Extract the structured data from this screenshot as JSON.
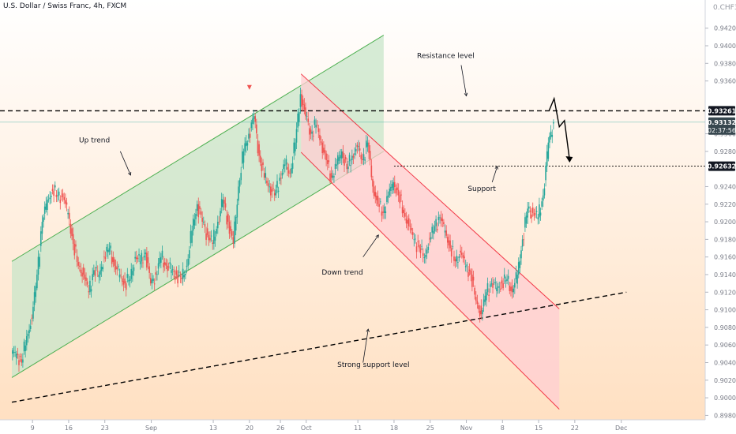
{
  "chart_data": {
    "type": "candlestick",
    "title": "U.S. Dollar / Swiss Franc, 4h, FXCM",
    "currency": "CHF",
    "price_scale_header": "0.CHF3",
    "ylim": [
      0.8975,
      0.9452
    ],
    "yticks": [
      "0.89800",
      "0.90000",
      "0.90200",
      "0.90400",
      "0.90600",
      "0.90800",
      "0.91000",
      "0.91200",
      "0.91400",
      "0.91600",
      "0.91800",
      "0.92000",
      "0.92200",
      "0.92400",
      "0.92800",
      "0.93000",
      "0.93600",
      "0.93800",
      "0.94000",
      "0.94200"
    ],
    "xticks": [
      {
        "label": "9",
        "date": "2021-08-09"
      },
      {
        "label": "16",
        "date": "2021-08-16"
      },
      {
        "label": "23",
        "date": "2021-08-23"
      },
      {
        "label": "Sep",
        "date": "2021-09-01"
      },
      {
        "label": "13",
        "date": "2021-09-13"
      },
      {
        "label": "20",
        "date": "2021-09-20"
      },
      {
        "label": "26",
        "date": "2021-09-26"
      },
      {
        "label": "Oct",
        "date": "2021-10-01"
      },
      {
        "label": "11",
        "date": "2021-10-11"
      },
      {
        "label": "18",
        "date": "2021-10-18"
      },
      {
        "label": "25",
        "date": "2021-10-25"
      },
      {
        "label": "Nov",
        "date": "2021-11-01"
      },
      {
        "label": "8",
        "date": "2021-11-08"
      },
      {
        "label": "15",
        "date": "2021-11-15"
      },
      {
        "label": "22",
        "date": "2021-11-22"
      },
      {
        "label": "Dec",
        "date": "2021-12-01"
      }
    ],
    "current_price": {
      "value": 0.93132,
      "label": "0.93132",
      "countdown": "02:37:56"
    },
    "levels": [
      {
        "name": "Resistance level",
        "value": 0.93261,
        "label": "0.93261"
      },
      {
        "name": "Support",
        "value": 0.92632,
        "label": "0.92632"
      }
    ],
    "annotations": [
      "Up trend",
      "Down trend",
      "Resistance level",
      "Support",
      "Strong support level"
    ],
    "trendline": {
      "name": "Strong support level",
      "points": [
        {
          "date": "2021-08-05",
          "price": 0.8995
        },
        {
          "date": "2021-12-02",
          "price": 0.912
        }
      ]
    },
    "channels": [
      {
        "name": "Up trend",
        "color": "#4caf50",
        "lower": [
          {
            "date": "2021-08-05",
            "price": 0.9023
          },
          {
            "date": "2021-10-16",
            "price": 0.928
          }
        ],
        "upper": [
          {
            "date": "2021-08-05",
            "price": 0.9155
          },
          {
            "date": "2021-10-16",
            "price": 0.9412
          }
        ]
      },
      {
        "name": "Down trend",
        "color": "#f23645",
        "upper": [
          {
            "date": "2021-09-30",
            "price": 0.9368
          },
          {
            "date": "2021-11-19",
            "price": 0.9101
          }
        ],
        "lower": [
          {
            "date": "2021-09-30",
            "price": 0.9279
          },
          {
            "date": "2021-11-19",
            "price": 0.8987
          }
        ]
      }
    ],
    "projection": [
      {
        "date": "2021-11-17",
        "price": 0.9326
      },
      {
        "date": "2021-11-18",
        "price": 0.934
      },
      {
        "date": "2021-11-19",
        "price": 0.9308
      },
      {
        "date": "2021-11-20",
        "price": 0.9315
      },
      {
        "date": "2021-11-21",
        "price": 0.927
      }
    ],
    "colors": {
      "up": "#26a69a",
      "down": "#ef5350",
      "up_channel_fill": "#c8e6c9",
      "down_channel_fill": "#ffcdd2",
      "background_top": "#ffffff",
      "background_bottom": "#ffe0c2",
      "label_dark": "#131722",
      "current_price_bg": "#37474f"
    },
    "series": [
      {
        "date": "2021-08-05",
        "close": 0.905
      },
      {
        "date": "2021-08-06",
        "close": 0.904
      },
      {
        "date": "2021-08-07",
        "close": 0.907
      },
      {
        "date": "2021-08-08",
        "close": 0.909
      },
      {
        "date": "2021-08-09",
        "close": 0.914
      },
      {
        "date": "2021-08-10",
        "close": 0.92
      },
      {
        "date": "2021-08-11",
        "close": 0.9225
      },
      {
        "date": "2021-08-12",
        "close": 0.9235
      },
      {
        "date": "2021-08-13",
        "close": 0.923
      },
      {
        "date": "2021-08-14",
        "close": 0.9228
      },
      {
        "date": "2021-08-15",
        "close": 0.921
      },
      {
        "date": "2021-08-16",
        "close": 0.9175
      },
      {
        "date": "2021-08-17",
        "close": 0.915
      },
      {
        "date": "2021-08-18",
        "close": 0.914
      },
      {
        "date": "2021-08-19",
        "close": 0.912
      },
      {
        "date": "2021-08-20",
        "close": 0.9145
      },
      {
        "date": "2021-08-21",
        "close": 0.914
      },
      {
        "date": "2021-08-22",
        "close": 0.916
      },
      {
        "date": "2021-08-23",
        "close": 0.917
      },
      {
        "date": "2021-08-24",
        "close": 0.915
      },
      {
        "date": "2021-08-25",
        "close": 0.914
      },
      {
        "date": "2021-08-26",
        "close": 0.913
      },
      {
        "date": "2021-08-27",
        "close": 0.9135
      },
      {
        "date": "2021-08-28",
        "close": 0.916
      },
      {
        "date": "2021-08-29",
        "close": 0.9155
      },
      {
        "date": "2021-08-30",
        "close": 0.9165
      },
      {
        "date": "2021-08-31",
        "close": 0.913
      },
      {
        "date": "2021-09-01",
        "close": 0.914
      },
      {
        "date": "2021-09-02",
        "close": 0.916
      },
      {
        "date": "2021-09-03",
        "close": 0.915
      },
      {
        "date": "2021-09-04",
        "close": 0.9145
      },
      {
        "date": "2021-09-05",
        "close": 0.914
      },
      {
        "date": "2021-09-06",
        "close": 0.9135
      },
      {
        "date": "2021-09-07",
        "close": 0.915
      },
      {
        "date": "2021-09-08",
        "close": 0.919
      },
      {
        "date": "2021-09-09",
        "close": 0.922
      },
      {
        "date": "2021-09-10",
        "close": 0.92
      },
      {
        "date": "2021-09-11",
        "close": 0.9185
      },
      {
        "date": "2021-09-12",
        "close": 0.9175
      },
      {
        "date": "2021-09-13",
        "close": 0.92
      },
      {
        "date": "2021-09-14",
        "close": 0.9225
      },
      {
        "date": "2021-09-15",
        "close": 0.92
      },
      {
        "date": "2021-09-16",
        "close": 0.9175
      },
      {
        "date": "2021-09-17",
        "close": 0.924
      },
      {
        "date": "2021-09-18",
        "close": 0.928
      },
      {
        "date": "2021-09-19",
        "close": 0.93
      },
      {
        "date": "2021-09-20",
        "close": 0.932
      },
      {
        "date": "2021-09-21",
        "close": 0.9275
      },
      {
        "date": "2021-09-22",
        "close": 0.925
      },
      {
        "date": "2021-09-23",
        "close": 0.924
      },
      {
        "date": "2021-09-24",
        "close": 0.923
      },
      {
        "date": "2021-09-25",
        "close": 0.925
      },
      {
        "date": "2021-09-26",
        "close": 0.9265
      },
      {
        "date": "2021-09-27",
        "close": 0.9255
      },
      {
        "date": "2021-09-28",
        "close": 0.929
      },
      {
        "date": "2021-09-29",
        "close": 0.9345
      },
      {
        "date": "2021-09-30",
        "close": 0.932
      },
      {
        "date": "2021-10-01",
        "close": 0.93
      },
      {
        "date": "2021-10-02",
        "close": 0.931
      },
      {
        "date": "2021-10-03",
        "close": 0.929
      },
      {
        "date": "2021-10-04",
        "close": 0.927
      },
      {
        "date": "2021-10-05",
        "close": 0.925
      },
      {
        "date": "2021-10-06",
        "close": 0.9265
      },
      {
        "date": "2021-10-07",
        "close": 0.928
      },
      {
        "date": "2021-10-08",
        "close": 0.926
      },
      {
        "date": "2021-10-09",
        "close": 0.9275
      },
      {
        "date": "2021-10-10",
        "close": 0.9285
      },
      {
        "date": "2021-10-11",
        "close": 0.927
      },
      {
        "date": "2021-10-12",
        "close": 0.929
      },
      {
        "date": "2021-10-13",
        "close": 0.924
      },
      {
        "date": "2021-10-14",
        "close": 0.922
      },
      {
        "date": "2021-10-15",
        "close": 0.921
      },
      {
        "date": "2021-10-16",
        "close": 0.923
      },
      {
        "date": "2021-10-17",
        "close": 0.9245
      },
      {
        "date": "2021-10-18",
        "close": 0.923
      },
      {
        "date": "2021-10-19",
        "close": 0.921
      },
      {
        "date": "2021-10-20",
        "close": 0.9195
      },
      {
        "date": "2021-10-21",
        "close": 0.918
      },
      {
        "date": "2021-10-22",
        "close": 0.917
      },
      {
        "date": "2021-10-23",
        "close": 0.916
      },
      {
        "date": "2021-10-24",
        "close": 0.918
      },
      {
        "date": "2021-10-25",
        "close": 0.9195
      },
      {
        "date": "2021-10-26",
        "close": 0.9205
      },
      {
        "date": "2021-10-27",
        "close": 0.919
      },
      {
        "date": "2021-10-28",
        "close": 0.917
      },
      {
        "date": "2021-10-29",
        "close": 0.9155
      },
      {
        "date": "2021-10-30",
        "close": 0.9165
      },
      {
        "date": "2021-10-31",
        "close": 0.915
      },
      {
        "date": "2021-11-01",
        "close": 0.914
      },
      {
        "date": "2021-11-02",
        "close": 0.911
      },
      {
        "date": "2021-11-03",
        "close": 0.9095
      },
      {
        "date": "2021-11-04",
        "close": 0.912
      },
      {
        "date": "2021-11-05",
        "close": 0.913
      },
      {
        "date": "2021-11-06",
        "close": 0.9125
      },
      {
        "date": "2021-11-07",
        "close": 0.913
      },
      {
        "date": "2021-11-08",
        "close": 0.9135
      },
      {
        "date": "2021-11-09",
        "close": 0.912
      },
      {
        "date": "2021-11-10",
        "close": 0.914
      },
      {
        "date": "2021-11-11",
        "close": 0.918
      },
      {
        "date": "2021-11-12",
        "close": 0.9215
      },
      {
        "date": "2021-11-13",
        "close": 0.921
      },
      {
        "date": "2021-11-14",
        "close": 0.9205
      },
      {
        "date": "2021-11-15",
        "close": 0.923
      },
      {
        "date": "2021-11-16",
        "close": 0.929
      },
      {
        "date": "2021-11-17",
        "close": 0.9313
      }
    ]
  }
}
